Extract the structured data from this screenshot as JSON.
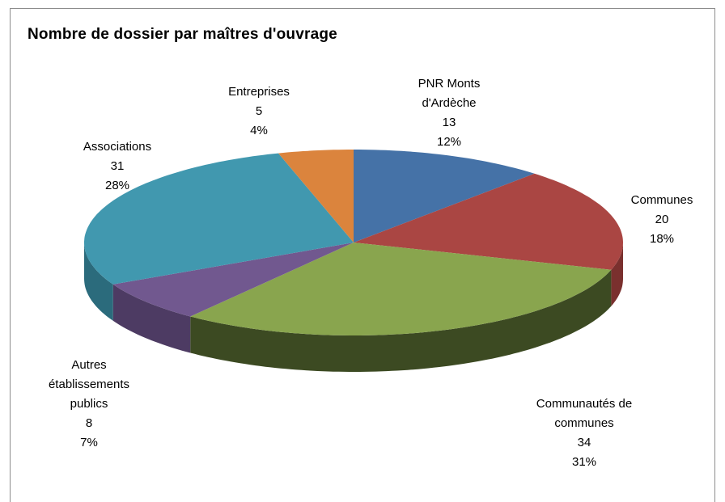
{
  "chart_data": {
    "type": "pie",
    "title": "Nombre de dossier par maîtres d'ouvrage",
    "categories": [
      "PNR Monts d'Ardèche",
      "Communes",
      "Communautés de communes",
      "Autres établissements publics",
      "Associations",
      "Entreprises"
    ],
    "values": [
      13,
      20,
      34,
      8,
      31,
      5
    ],
    "percent_values": [
      12,
      18,
      31,
      7,
      28,
      4
    ],
    "percent_labels": [
      "12%",
      "18%",
      "31%",
      "7%",
      "28%",
      "4%"
    ],
    "colors": [
      "#4572a7",
      "#aa4643",
      "#89a54e",
      "#71588f",
      "#4198af",
      "#db843d"
    ],
    "side_colors": [
      "#2f4f78",
      "#7a302e",
      "#3c4a22",
      "#4d3b63",
      "#2b6b7c",
      "#9c5c28"
    ]
  }
}
